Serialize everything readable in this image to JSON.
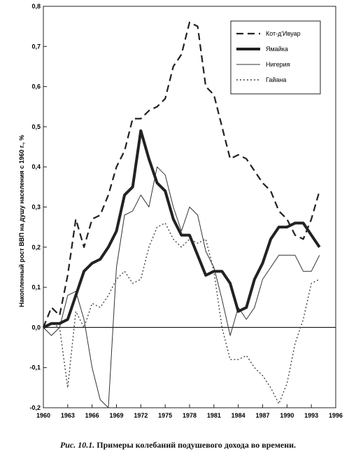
{
  "caption": {
    "figure_label": "Рис. 10.1.",
    "text": "Примеры колебаний подушевого дохода во времени."
  },
  "chart_data": {
    "type": "line",
    "title": "",
    "xlabel": "",
    "ylabel": "Накопленный рост ВВП на душу населения с 1960 г., %",
    "xlim": [
      1960,
      1996
    ],
    "ylim": [
      -0.2,
      0.8
    ],
    "x_ticks": [
      1960,
      1963,
      1966,
      1969,
      1972,
      1975,
      1978,
      1981,
      1984,
      1987,
      1990,
      1993,
      1996
    ],
    "y_ticks": [
      -0.2,
      -0.1,
      0.0,
      0.1,
      0.2,
      0.3,
      0.4,
      0.5,
      0.6,
      0.7,
      0.8
    ],
    "y_tick_labels": [
      "-0,2",
      "-0,1",
      "0,0",
      "0,1",
      "0,2",
      "0,3",
      "0,4",
      "0,5",
      "0,6",
      "0,7",
      "0,8"
    ],
    "grid": false,
    "legend_position": "top-right",
    "series": [
      {
        "name": "Кот-д'Ивуар",
        "style": "dashed",
        "color": "#222222",
        "x": [
          1960,
          1961,
          1962,
          1963,
          1964,
          1965,
          1966,
          1967,
          1968,
          1969,
          1970,
          1971,
          1972,
          1973,
          1974,
          1975,
          1976,
          1977,
          1978,
          1979,
          1980,
          1981,
          1982,
          1983,
          1984,
          1985,
          1986,
          1987,
          1988,
          1989,
          1990,
          1991,
          1992,
          1993,
          1994
        ],
        "y": [
          0.0,
          0.05,
          0.03,
          0.13,
          0.27,
          0.2,
          0.27,
          0.28,
          0.33,
          0.4,
          0.44,
          0.52,
          0.52,
          0.54,
          0.55,
          0.57,
          0.65,
          0.68,
          0.76,
          0.75,
          0.6,
          0.58,
          0.5,
          0.42,
          0.43,
          0.42,
          0.39,
          0.36,
          0.34,
          0.29,
          0.27,
          0.23,
          0.22,
          0.27,
          0.34
        ]
      },
      {
        "name": "Ямайка",
        "style": "solid-thick",
        "color": "#222222",
        "x": [
          1960,
          1961,
          1962,
          1963,
          1964,
          1965,
          1966,
          1967,
          1968,
          1969,
          1970,
          1971,
          1972,
          1973,
          1974,
          1975,
          1976,
          1977,
          1978,
          1979,
          1980,
          1981,
          1982,
          1983,
          1984,
          1985,
          1986,
          1987,
          1988,
          1989,
          1990,
          1991,
          1992,
          1993,
          1994
        ],
        "y": [
          0.0,
          0.01,
          0.01,
          0.02,
          0.08,
          0.14,
          0.16,
          0.17,
          0.2,
          0.24,
          0.33,
          0.35,
          0.49,
          0.42,
          0.36,
          0.34,
          0.27,
          0.23,
          0.23,
          0.18,
          0.13,
          0.14,
          0.14,
          0.11,
          0.04,
          0.05,
          0.12,
          0.16,
          0.22,
          0.25,
          0.25,
          0.26,
          0.26,
          0.23,
          0.2
        ]
      },
      {
        "name": "Нигерия",
        "style": "solid-thin",
        "color": "#333333",
        "x": [
          1960,
          1961,
          1962,
          1963,
          1964,
          1965,
          1966,
          1967,
          1968,
          1969,
          1970,
          1971,
          1972,
          1973,
          1974,
          1975,
          1976,
          1977,
          1978,
          1979,
          1980,
          1981,
          1982,
          1983,
          1984,
          1985,
          1986,
          1987,
          1988,
          1989,
          1990,
          1991,
          1992,
          1993,
          1994
        ],
        "y": [
          0.0,
          -0.02,
          0.0,
          0.08,
          0.09,
          0.02,
          -0.1,
          -0.18,
          -0.2,
          0.15,
          0.28,
          0.29,
          0.33,
          0.3,
          0.4,
          0.38,
          0.3,
          0.24,
          0.3,
          0.28,
          0.19,
          0.15,
          0.07,
          -0.02,
          0.05,
          0.02,
          0.05,
          0.12,
          0.15,
          0.18,
          0.18,
          0.18,
          0.14,
          0.14,
          0.18
        ]
      },
      {
        "name": "Гайана",
        "style": "dotted",
        "color": "#444444",
        "x": [
          1960,
          1961,
          1962,
          1963,
          1964,
          1965,
          1966,
          1967,
          1968,
          1969,
          1970,
          1971,
          1972,
          1973,
          1974,
          1975,
          1976,
          1977,
          1978,
          1979,
          1980,
          1981,
          1982,
          1983,
          1984,
          1985,
          1986,
          1987,
          1988,
          1989,
          1990,
          1991,
          1992,
          1993,
          1994
        ],
        "y": [
          0.0,
          0.01,
          0.0,
          -0.15,
          0.04,
          0.0,
          0.06,
          0.05,
          0.08,
          0.12,
          0.14,
          0.11,
          0.12,
          0.2,
          0.25,
          0.26,
          0.22,
          0.2,
          0.22,
          0.21,
          0.22,
          0.14,
          0.0,
          -0.08,
          -0.08,
          -0.07,
          -0.1,
          -0.12,
          -0.15,
          -0.19,
          -0.14,
          -0.04,
          0.02,
          0.11,
          0.12
        ]
      }
    ]
  }
}
